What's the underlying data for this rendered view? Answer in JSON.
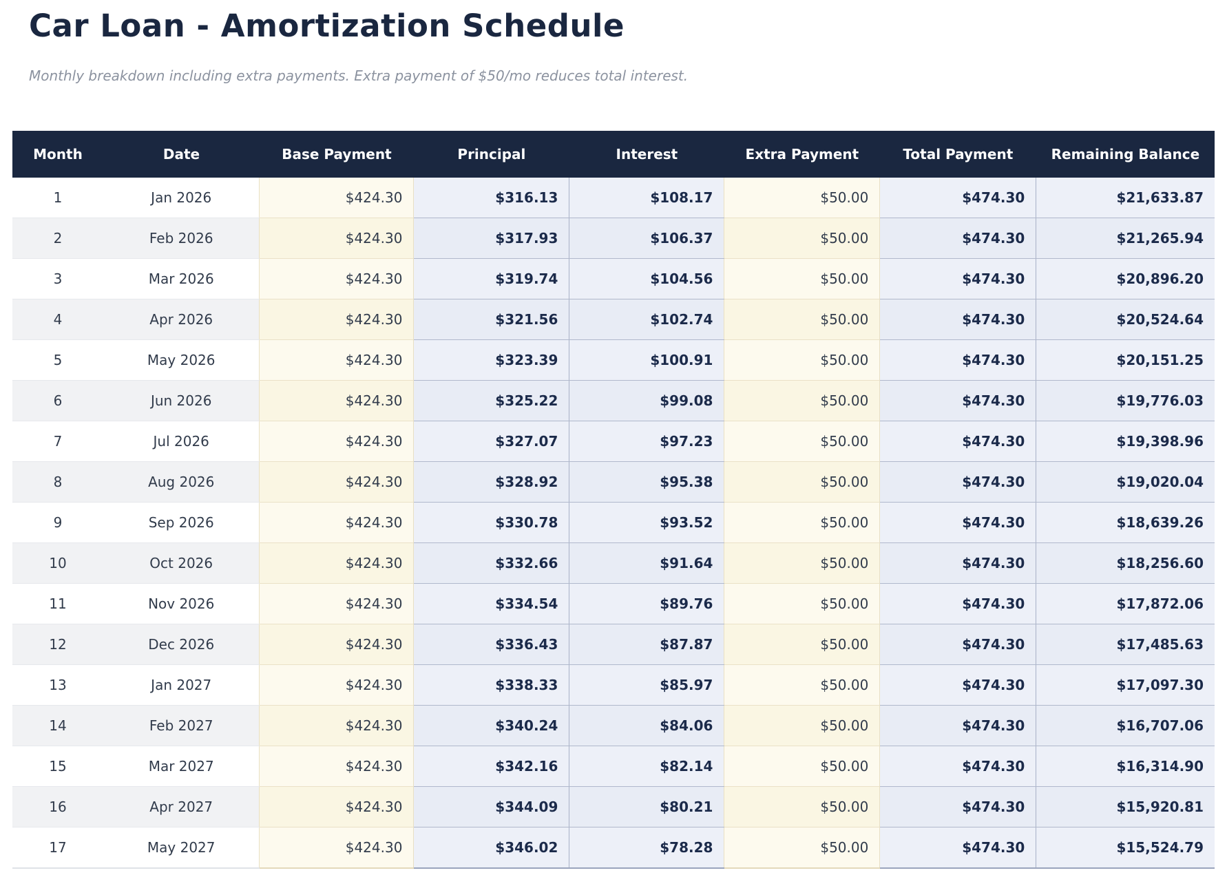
{
  "page": {
    "title": "Car Loan - Amortization Schedule",
    "subtitle": "Monthly breakdown including extra payments. Extra payment of $50/mo reduces total interest."
  },
  "colors": {
    "header_bg": "#1a2740",
    "title_text": "#1a2740",
    "subtitle_text": "#8b929f",
    "bold_value_text": "#1b2a4a",
    "cream_column_bg": "#fdfaee",
    "blue_column_bg": "#edf0f8",
    "even_row_stripe": "#f1f2f4",
    "blue_border": "#a8b1c7",
    "cream_border": "#e9e0c4"
  },
  "table": {
    "columns": [
      {
        "key": "month",
        "label": "Month",
        "type": "plain",
        "align": "center"
      },
      {
        "key": "date",
        "label": "Date",
        "type": "plain",
        "align": "center"
      },
      {
        "key": "base_payment",
        "label": "Base Payment",
        "type": "cream",
        "align": "right"
      },
      {
        "key": "principal",
        "label": "Principal",
        "type": "blue",
        "align": "right"
      },
      {
        "key": "interest",
        "label": "Interest",
        "type": "blue",
        "align": "right"
      },
      {
        "key": "extra_payment",
        "label": "Extra Payment",
        "type": "cream",
        "align": "right"
      },
      {
        "key": "total_payment",
        "label": "Total Payment",
        "type": "blue",
        "align": "right"
      },
      {
        "key": "remaining_balance",
        "label": "Remaining Balance",
        "type": "blue",
        "align": "right"
      }
    ],
    "rows": [
      {
        "month": "1",
        "date": "Jan 2026",
        "base_payment": "$424.30",
        "principal": "$316.13",
        "interest": "$108.17",
        "extra_payment": "$50.00",
        "total_payment": "$474.30",
        "remaining_balance": "$21,633.87"
      },
      {
        "month": "2",
        "date": "Feb 2026",
        "base_payment": "$424.30",
        "principal": "$317.93",
        "interest": "$106.37",
        "extra_payment": "$50.00",
        "total_payment": "$474.30",
        "remaining_balance": "$21,265.94"
      },
      {
        "month": "3",
        "date": "Mar 2026",
        "base_payment": "$424.30",
        "principal": "$319.74",
        "interest": "$104.56",
        "extra_payment": "$50.00",
        "total_payment": "$474.30",
        "remaining_balance": "$20,896.20"
      },
      {
        "month": "4",
        "date": "Apr 2026",
        "base_payment": "$424.30",
        "principal": "$321.56",
        "interest": "$102.74",
        "extra_payment": "$50.00",
        "total_payment": "$474.30",
        "remaining_balance": "$20,524.64"
      },
      {
        "month": "5",
        "date": "May 2026",
        "base_payment": "$424.30",
        "principal": "$323.39",
        "interest": "$100.91",
        "extra_payment": "$50.00",
        "total_payment": "$474.30",
        "remaining_balance": "$20,151.25"
      },
      {
        "month": "6",
        "date": "Jun 2026",
        "base_payment": "$424.30",
        "principal": "$325.22",
        "interest": "$99.08",
        "extra_payment": "$50.00",
        "total_payment": "$474.30",
        "remaining_balance": "$19,776.03"
      },
      {
        "month": "7",
        "date": "Jul 2026",
        "base_payment": "$424.30",
        "principal": "$327.07",
        "interest": "$97.23",
        "extra_payment": "$50.00",
        "total_payment": "$474.30",
        "remaining_balance": "$19,398.96"
      },
      {
        "month": "8",
        "date": "Aug 2026",
        "base_payment": "$424.30",
        "principal": "$328.92",
        "interest": "$95.38",
        "extra_payment": "$50.00",
        "total_payment": "$474.30",
        "remaining_balance": "$19,020.04"
      },
      {
        "month": "9",
        "date": "Sep 2026",
        "base_payment": "$424.30",
        "principal": "$330.78",
        "interest": "$93.52",
        "extra_payment": "$50.00",
        "total_payment": "$474.30",
        "remaining_balance": "$18,639.26"
      },
      {
        "month": "10",
        "date": "Oct 2026",
        "base_payment": "$424.30",
        "principal": "$332.66",
        "interest": "$91.64",
        "extra_payment": "$50.00",
        "total_payment": "$474.30",
        "remaining_balance": "$18,256.60"
      },
      {
        "month": "11",
        "date": "Nov 2026",
        "base_payment": "$424.30",
        "principal": "$334.54",
        "interest": "$89.76",
        "extra_payment": "$50.00",
        "total_payment": "$474.30",
        "remaining_balance": "$17,872.06"
      },
      {
        "month": "12",
        "date": "Dec 2026",
        "base_payment": "$424.30",
        "principal": "$336.43",
        "interest": "$87.87",
        "extra_payment": "$50.00",
        "total_payment": "$474.30",
        "remaining_balance": "$17,485.63"
      },
      {
        "month": "13",
        "date": "Jan 2027",
        "base_payment": "$424.30",
        "principal": "$338.33",
        "interest": "$85.97",
        "extra_payment": "$50.00",
        "total_payment": "$474.30",
        "remaining_balance": "$17,097.30"
      },
      {
        "month": "14",
        "date": "Feb 2027",
        "base_payment": "$424.30",
        "principal": "$340.24",
        "interest": "$84.06",
        "extra_payment": "$50.00",
        "total_payment": "$474.30",
        "remaining_balance": "$16,707.06"
      },
      {
        "month": "15",
        "date": "Mar 2027",
        "base_payment": "$424.30",
        "principal": "$342.16",
        "interest": "$82.14",
        "extra_payment": "$50.00",
        "total_payment": "$474.30",
        "remaining_balance": "$16,314.90"
      },
      {
        "month": "16",
        "date": "Apr 2027",
        "base_payment": "$424.30",
        "principal": "$344.09",
        "interest": "$80.21",
        "extra_payment": "$50.00",
        "total_payment": "$474.30",
        "remaining_balance": "$15,920.81"
      },
      {
        "month": "17",
        "date": "May 2027",
        "base_payment": "$424.30",
        "principal": "$346.02",
        "interest": "$78.28",
        "extra_payment": "$50.00",
        "total_payment": "$474.30",
        "remaining_balance": "$15,524.79"
      }
    ]
  }
}
